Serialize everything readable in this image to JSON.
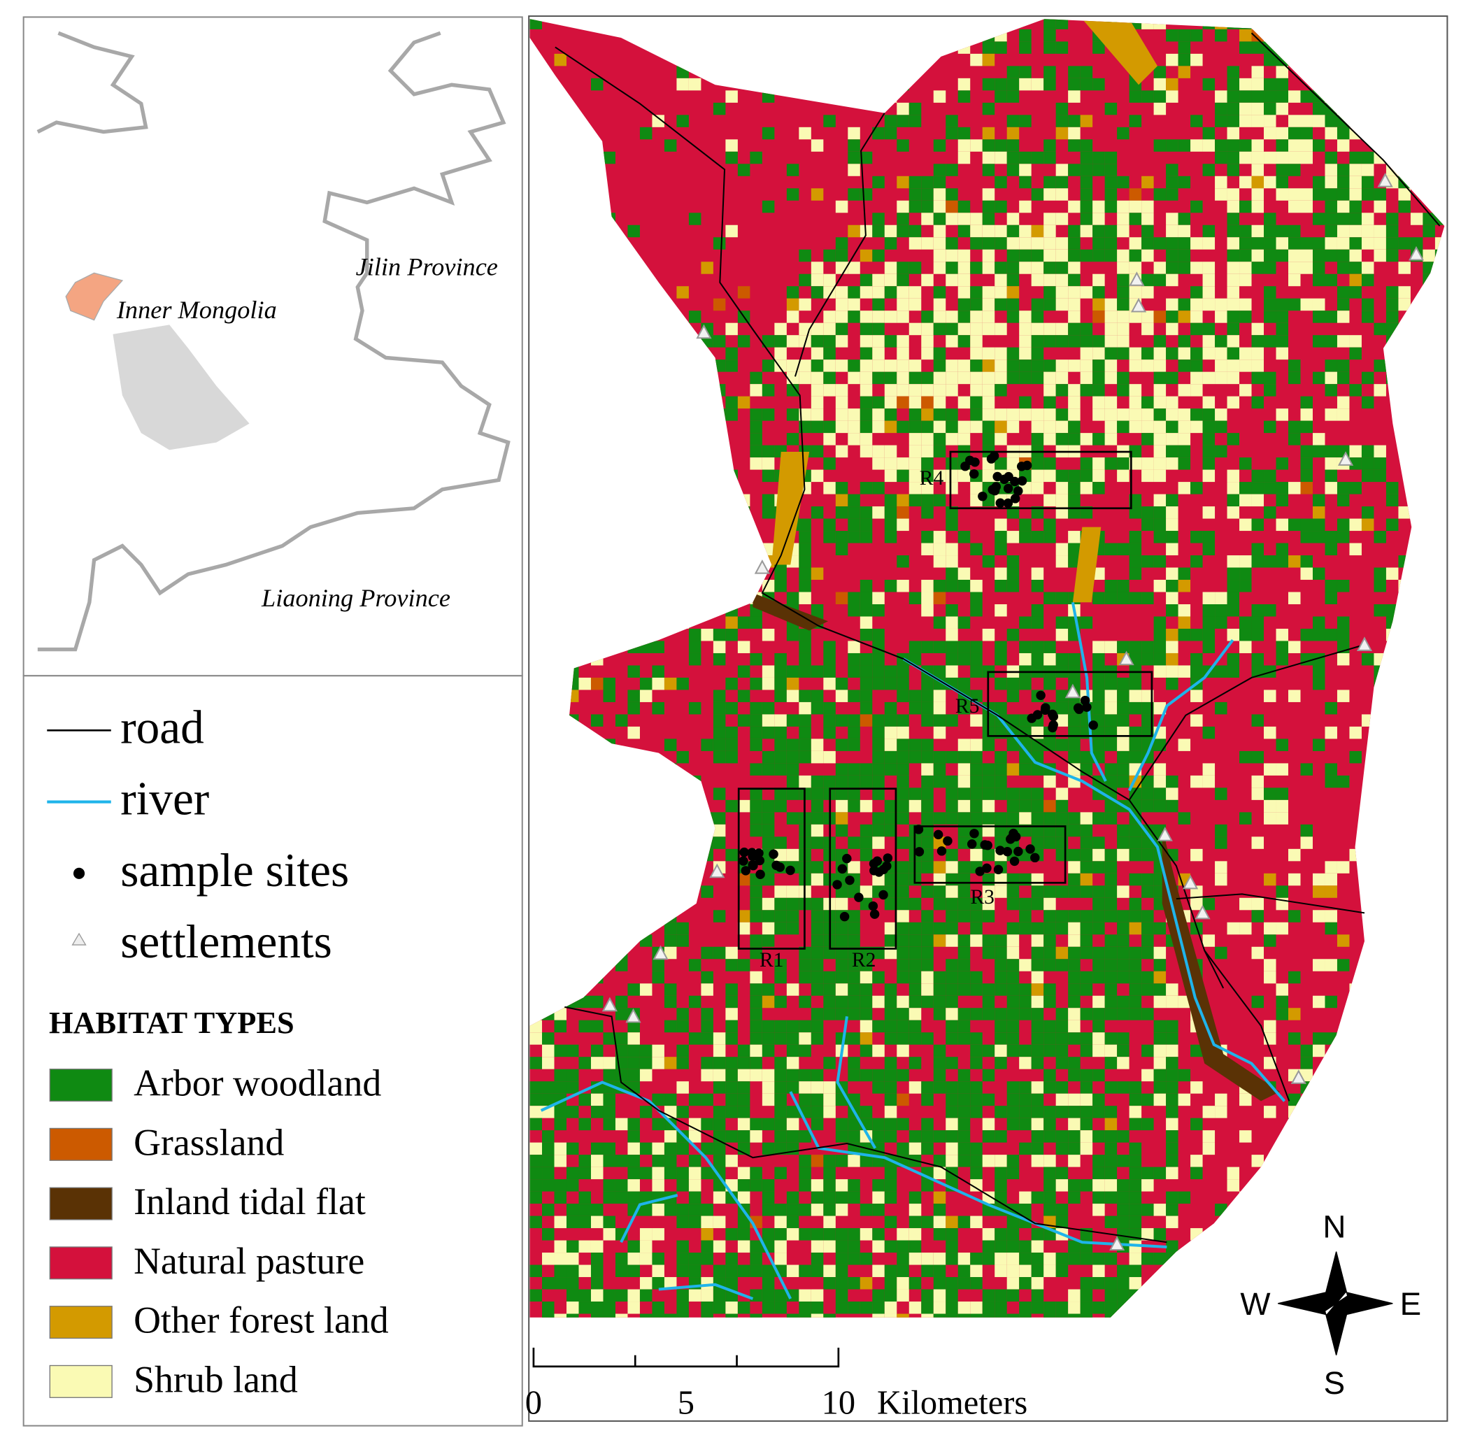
{
  "inset": {
    "labels": [
      "Jilin Province",
      "Inner Mongolia",
      "Liaoning Province"
    ]
  },
  "legend": {
    "items": [
      "road",
      "river",
      "sample sites",
      "settlements"
    ],
    "habitat_title": "HABITAT TYPES",
    "habitat_types": [
      {
        "name": "Arbor woodland",
        "color": "#0f8a12"
      },
      {
        "name": "Grassland",
        "color": "#cc5a00"
      },
      {
        "name": "Inland tidal flat",
        "color": "#5a3205"
      },
      {
        "name": "Natural pasture",
        "color": "#d4113c"
      },
      {
        "name": "Other forest land",
        "color": "#d39a00"
      },
      {
        "name": "Shrub land",
        "color": "#fafab4"
      }
    ]
  },
  "map": {
    "regions": [
      "R1",
      "R2",
      "R3",
      "R4",
      "R5"
    ]
  },
  "scale_bar": {
    "ticks": [
      0,
      5,
      10
    ],
    "unit": "Kilometers"
  },
  "compass": [
    "N",
    "E",
    "S",
    "W"
  ]
}
